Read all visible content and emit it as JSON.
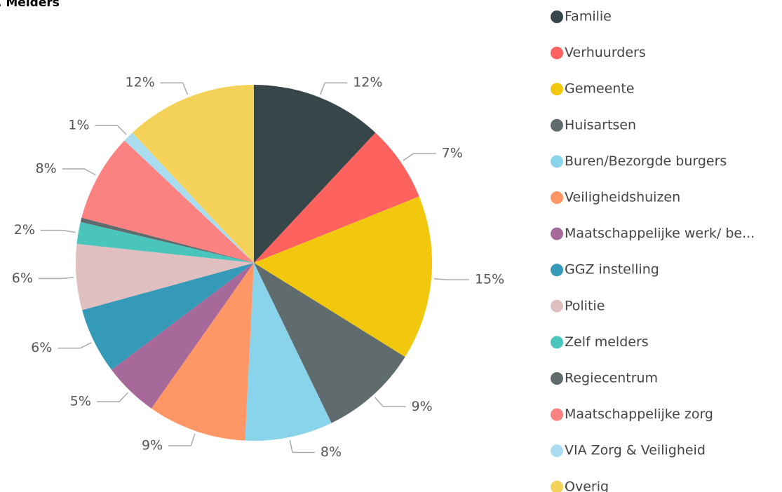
{
  "chart_data": {
    "type": "pie",
    "title": ". Melders",
    "categories": [
      "Familie",
      "Verhuurders",
      "Gemeente",
      "Huisartsen",
      "Buren/Bezorgde burgers",
      "Veiligheidshuizen",
      "Maatschappelijke werk/ be...",
      "GGZ instelling",
      "Politie",
      "Zelf melders",
      "Regiecentrum",
      "Maatschappelijke zorg",
      "VIA Zorg & Veiligheid",
      "Overig"
    ],
    "values": [
      12,
      7,
      15,
      9,
      8,
      9,
      5,
      6,
      6,
      2,
      0.4,
      8,
      1,
      12
    ],
    "value_labels": [
      "12%",
      "7%",
      "15%",
      "9%",
      "8%",
      "9%",
      "5%",
      "6%",
      "6%",
      "2%",
      null,
      "8%",
      "1%",
      "12%"
    ],
    "colors": [
      "#374649",
      "#fd625e",
      "#f2c80f",
      "#5f6b6d",
      "#8ad4eb",
      "#fe9666",
      "#a66999",
      "#3599b8",
      "#dfbfbf",
      "#4ac5bb",
      "#5f6b6d",
      "#fb8281",
      "#a9dcef",
      "#f4d25a"
    ],
    "legend": "right"
  }
}
